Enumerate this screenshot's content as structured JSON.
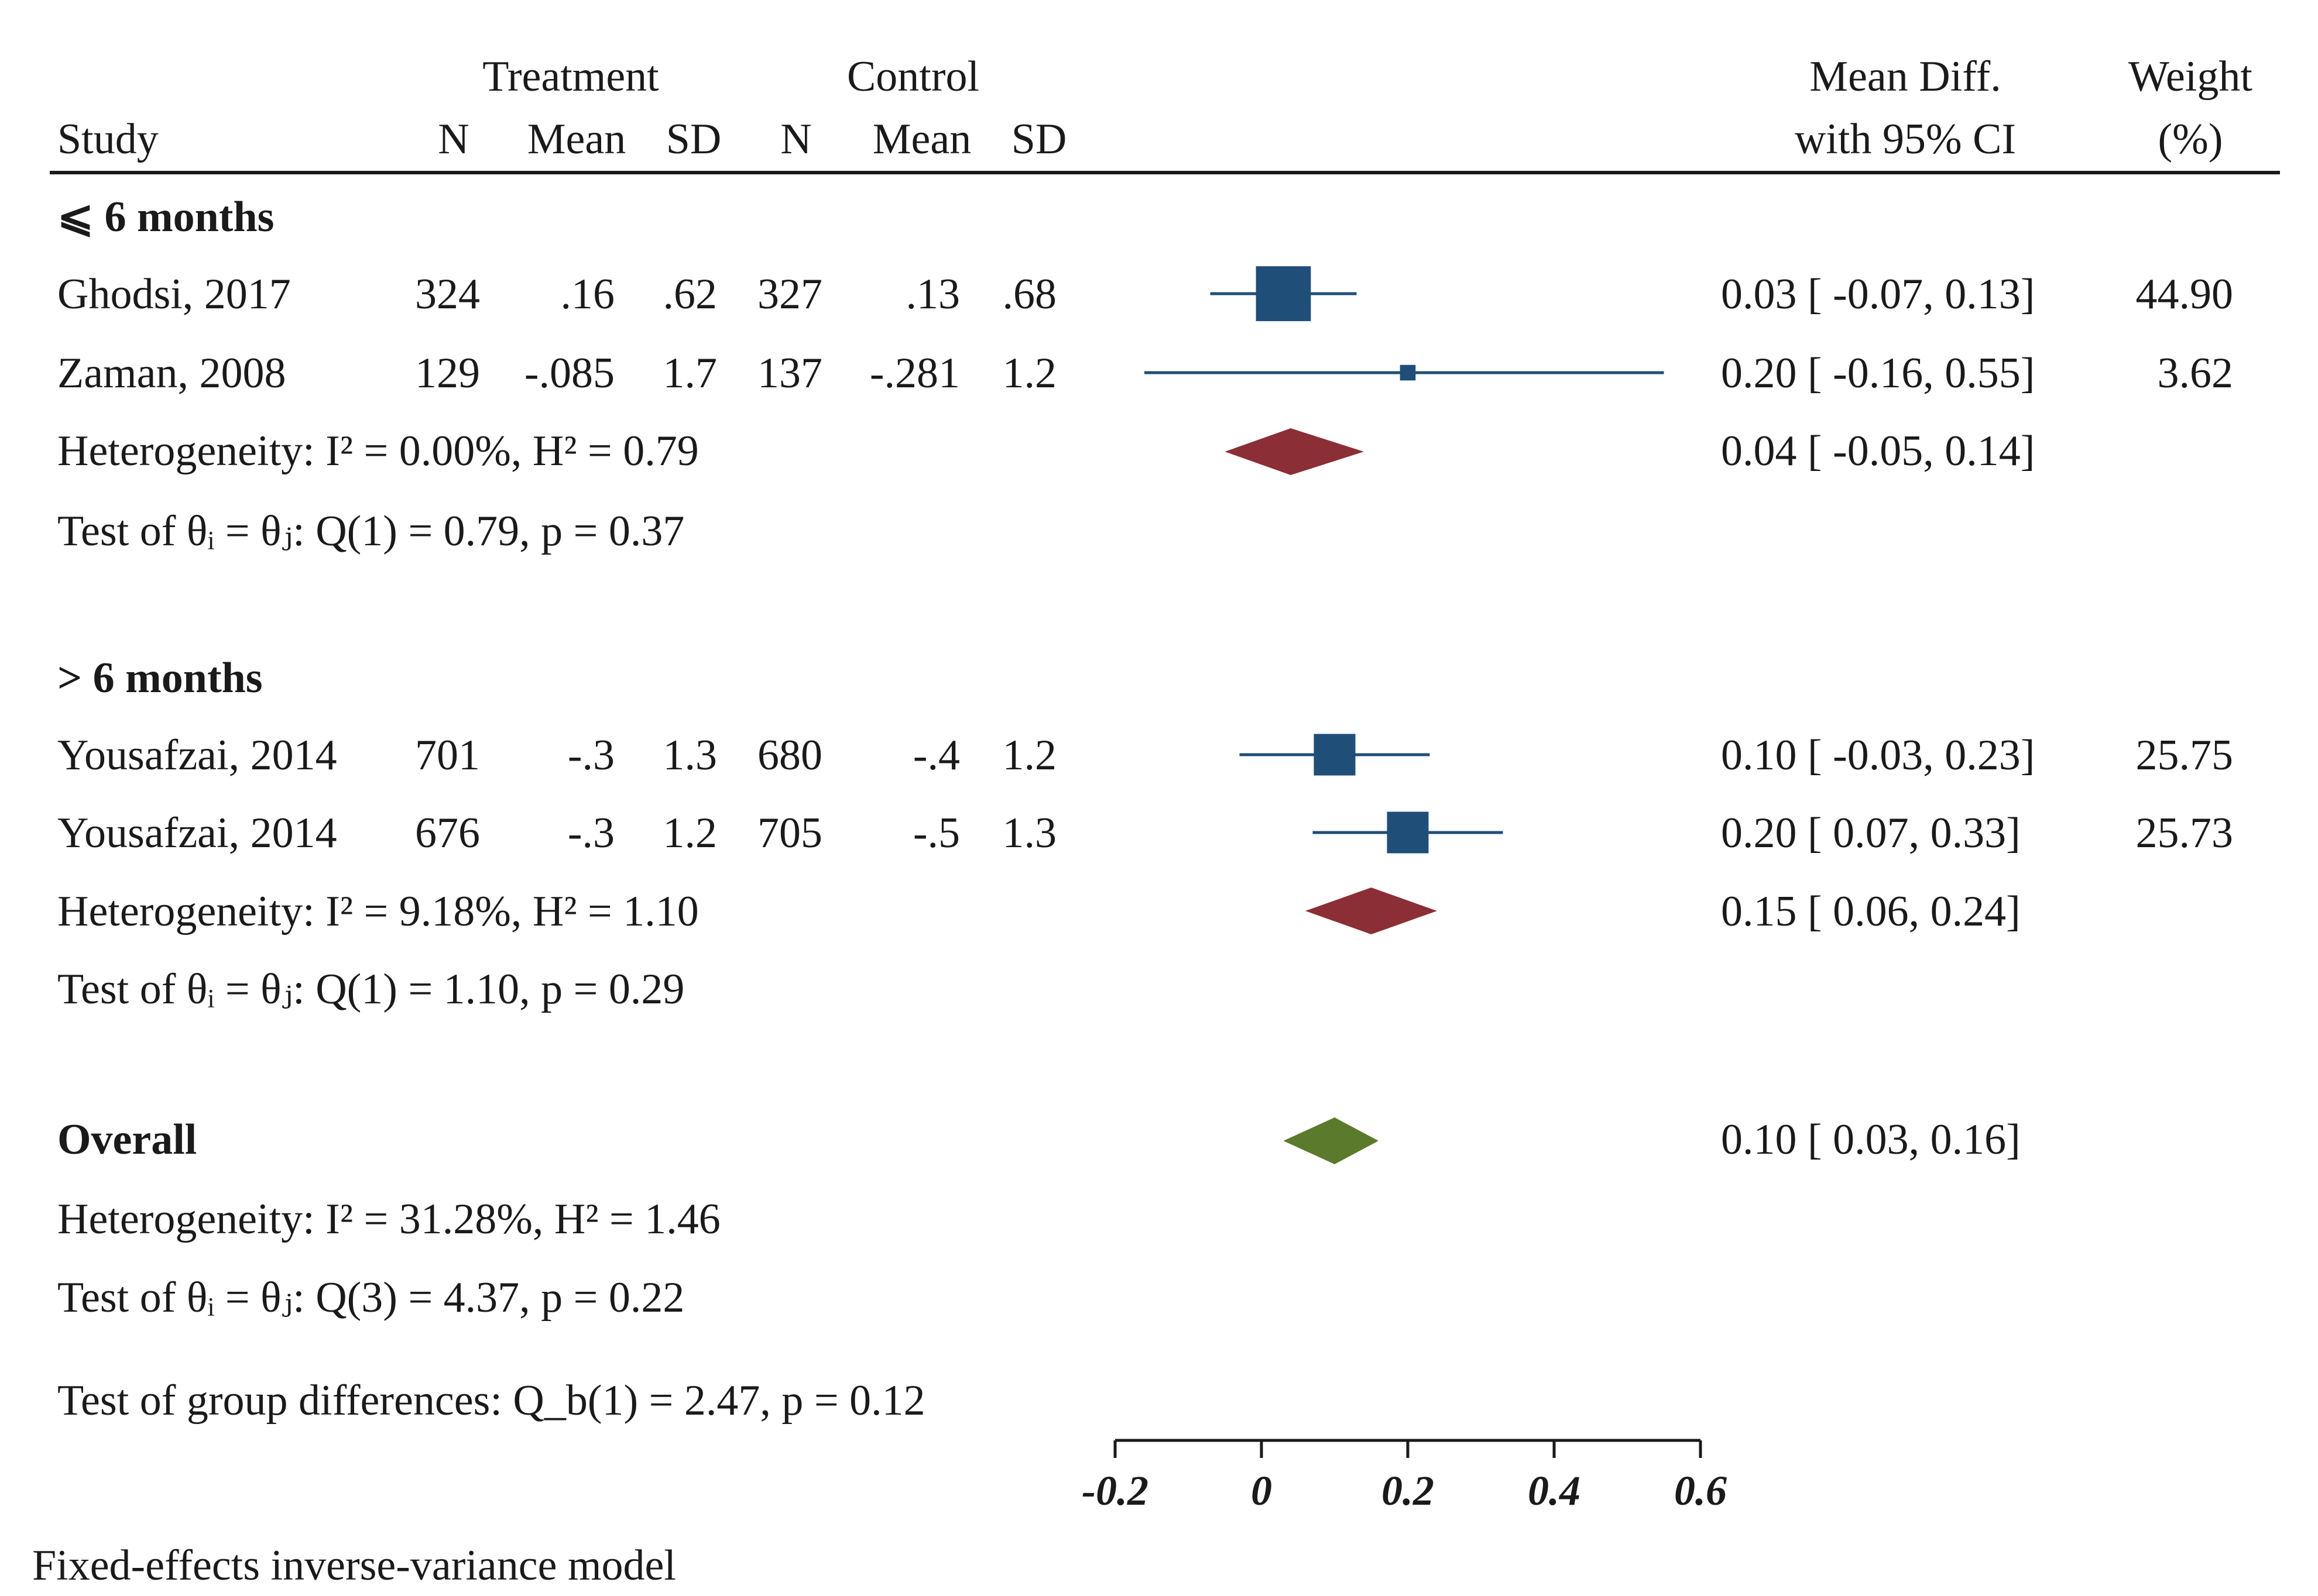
{
  "header": {
    "study": "Study",
    "treatment": "Treatment",
    "control": "Control",
    "n": "N",
    "mean": "Mean",
    "sd": "SD",
    "effect_line1": "Mean Diff.",
    "effect_line2": "with 95% CI",
    "weight_line1": "Weight",
    "weight_line2": "(%)"
  },
  "groups": [
    {
      "label": "⩽ 6 months",
      "studies": [
        {
          "name": "Ghodsi, 2017",
          "t_n": "324",
          "t_mean": ".16",
          "t_sd": ".62",
          "c_n": "327",
          "c_mean": ".13",
          "c_sd": ".68",
          "ci_text": "0.03 [ -0.07, 0.13]",
          "weight_text": "44.90"
        },
        {
          "name": "Zaman, 2008",
          "t_n": "129",
          "t_mean": "-.085",
          "t_sd": "1.7",
          "c_n": "137",
          "c_mean": "-.281",
          "c_sd": "1.2",
          "ci_text": "0.20 [ -0.16, 0.55]",
          "weight_text": "3.62"
        }
      ],
      "heterogeneity": "Heterogeneity: I² = 0.00%, H² = 0.79",
      "test": "Test of θᵢ = θⱼ: Q(1) = 0.79, p = 0.37",
      "summary_text": "0.04 [ -0.05, 0.14]"
    },
    {
      "label": "> 6 months",
      "studies": [
        {
          "name": "Yousafzai, 2014",
          "t_n": "701",
          "t_mean": "-.3",
          "t_sd": "1.3",
          "c_n": "680",
          "c_mean": "-.4",
          "c_sd": "1.2",
          "ci_text": "0.10 [ -0.03, 0.23]",
          "weight_text": "25.75"
        },
        {
          "name": "Yousafzai, 2014",
          "t_n": "676",
          "t_mean": "-.3",
          "t_sd": "1.2",
          "c_n": "705",
          "c_mean": "-.5",
          "c_sd": "1.3",
          "ci_text": "0.20 [ 0.07, 0.33]",
          "weight_text": "25.73"
        }
      ],
      "heterogeneity": "Heterogeneity: I² = 9.18%, H² = 1.10",
      "test": "Test of θᵢ = θⱼ: Q(1) = 1.10, p = 0.29",
      "summary_text": "0.15 [ 0.06, 0.24]"
    }
  ],
  "overall": {
    "label": "Overall",
    "summary_text": "0.10 [ 0.03, 0.16]",
    "heterogeneity": "Heterogeneity: I² = 31.28%, H² = 1.46",
    "test": "Test of θᵢ = θⱼ: Q(3) = 4.37, p = 0.22"
  },
  "group_test": "Test of group differences: Q_b(1) = 2.47, p = 0.12",
  "footnote": "Fixed-effects inverse-variance model",
  "colors": {
    "study": "#1f4e79",
    "subgroup_diamond": "#8b2e35",
    "overall_diamond": "#5b7a2c",
    "text": "#1a1a1a"
  },
  "chart_data": {
    "type": "forest",
    "x_ticks": [
      -0.2,
      0,
      0.2,
      0.4,
      0.6
    ],
    "x_tick_labels": [
      "-0.2",
      "0",
      "0.2",
      "0.4",
      "0.6"
    ],
    "xlim": [
      -0.2,
      0.6
    ],
    "studies": [
      {
        "name": "Ghodsi, 2017",
        "group": "⩽ 6 months",
        "estimate": 0.03,
        "ci_low": -0.07,
        "ci_high": 0.13,
        "weight": 44.9
      },
      {
        "name": "Zaman, 2008",
        "group": "⩽ 6 months",
        "estimate": 0.2,
        "ci_low": -0.16,
        "ci_high": 0.55,
        "weight": 3.62
      },
      {
        "name": "Yousafzai, 2014",
        "group": "> 6 months",
        "estimate": 0.1,
        "ci_low": -0.03,
        "ci_high": 0.23,
        "weight": 25.75
      },
      {
        "name": "Yousafzai, 2014",
        "group": "> 6 months",
        "estimate": 0.2,
        "ci_low": 0.07,
        "ci_high": 0.33,
        "weight": 25.73
      }
    ],
    "subgroup_summaries": [
      {
        "group": "⩽ 6 months",
        "estimate": 0.04,
        "ci_low": -0.05,
        "ci_high": 0.14
      },
      {
        "group": "> 6 months",
        "estimate": 0.15,
        "ci_low": 0.06,
        "ci_high": 0.24
      }
    ],
    "overall": {
      "estimate": 0.1,
      "ci_low": 0.03,
      "ci_high": 0.16
    }
  }
}
